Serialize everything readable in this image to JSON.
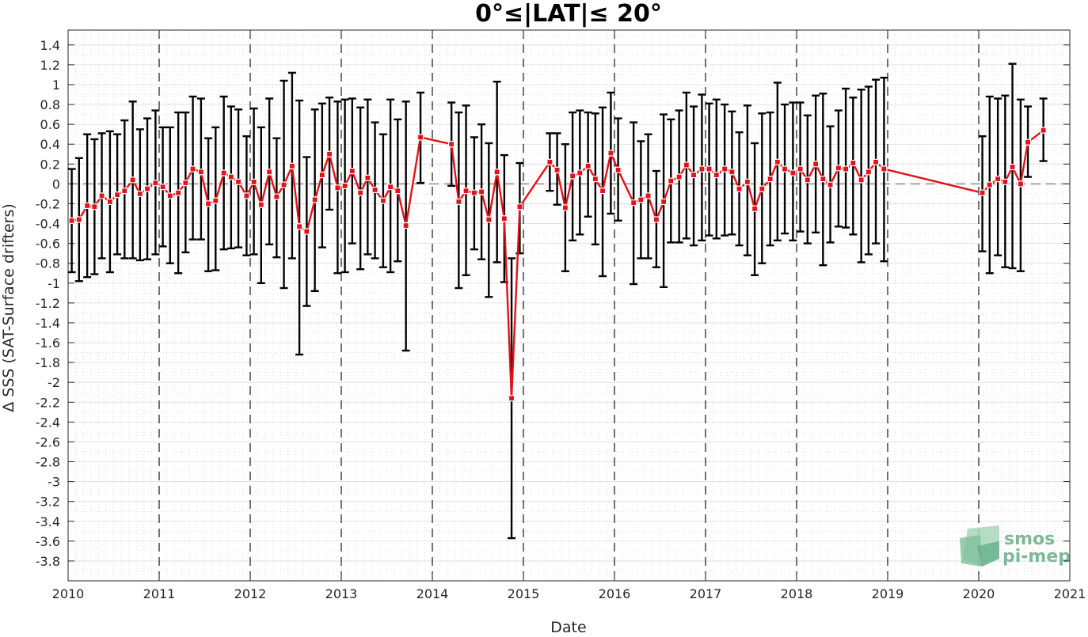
{
  "chart_data": {
    "type": "line",
    "title": "0°≤|LAT|≤ 20°",
    "xlabel": "Date",
    "ylabel": "Δ SSS (SAT-Surface drifters)",
    "xlim": [
      2010,
      2021
    ],
    "ylim": [
      -4.0,
      1.55
    ],
    "x_ticks": [
      "2010",
      "2011",
      "2012",
      "2013",
      "2014",
      "2015",
      "2016",
      "2017",
      "2018",
      "2019",
      "2020",
      "2021"
    ],
    "y_ticks": [
      1.4,
      1.2,
      1,
      0.8,
      0.6,
      0.4,
      0.2,
      0,
      -0.2,
      -0.4,
      -0.6,
      -0.8,
      -1,
      -1.2,
      -1.4,
      -1.6,
      -1.8,
      -2,
      -2.2,
      -2.4,
      -2.6,
      -2.8,
      -3,
      -3.2,
      -3.4,
      -3.6,
      -3.8
    ],
    "y_tick_labels": [
      "1.4",
      "1.2",
      "1",
      "0.8",
      "0.6",
      "0.4",
      "0.2",
      "0",
      "-0.2",
      "-0.4",
      "-0.6",
      "-0.8",
      "-1",
      "-1.2",
      "-1.4",
      "-1.6",
      "-1.8",
      "-2",
      "-2.2",
      "-2.4",
      "-2.6",
      "-2.8",
      "-3",
      "-3.2",
      "-3.4",
      "-3.6",
      "-3.8"
    ],
    "grid": true,
    "zero_line": true,
    "year_separators": true,
    "line_color": "#e3121a",
    "errorbar_color": "#000000",
    "series": [
      {
        "x": [
          2010.04,
          2010.12,
          2010.21,
          2010.29,
          2010.37,
          2010.46,
          2010.54,
          2010.62,
          2010.71,
          2010.79,
          2010.87,
          2010.96,
          2011.04,
          2011.12,
          2011.21,
          2011.29,
          2011.37,
          2011.46,
          2011.54,
          2011.62,
          2011.71,
          2011.79,
          2011.87,
          2011.96,
          2012.04,
          2012.12,
          2012.21,
          2012.29,
          2012.37,
          2012.46,
          2012.54,
          2012.62,
          2012.71,
          2012.79,
          2012.87,
          2012.96,
          2013.04,
          2013.12,
          2013.21,
          2013.29,
          2013.37,
          2013.46,
          2013.54,
          2013.62,
          2013.71,
          2013.87,
          2014.21,
          2014.29,
          2014.37,
          2014.46,
          2014.54,
          2014.62,
          2014.71,
          2014.79,
          2014.87,
          2014.96,
          2015.29,
          2015.37,
          2015.46,
          2015.54,
          2015.62,
          2015.71,
          2015.79,
          2015.87,
          2015.96,
          2016.04,
          2016.21,
          2016.29,
          2016.37,
          2016.46,
          2016.54,
          2016.62,
          2016.71,
          2016.79,
          2016.87,
          2016.96,
          2017.04,
          2017.12,
          2017.21,
          2017.29,
          2017.37,
          2017.46,
          2017.54,
          2017.62,
          2017.71,
          2017.79,
          2017.87,
          2017.96,
          2018.04,
          2018.12,
          2018.21,
          2018.29,
          2018.37,
          2018.46,
          2018.54,
          2018.62,
          2018.71,
          2018.79,
          2018.87,
          2018.96,
          2020.04,
          2020.12,
          2020.21,
          2020.29,
          2020.37,
          2020.46,
          2020.54,
          2020.71
        ],
        "values": [
          -0.37,
          -0.36,
          -0.22,
          -0.23,
          -0.12,
          -0.18,
          -0.11,
          -0.07,
          0.04,
          -0.1,
          -0.05,
          0.01,
          -0.03,
          -0.12,
          -0.09,
          0.01,
          0.15,
          0.12,
          -0.2,
          -0.17,
          0.11,
          0.07,
          0.02,
          -0.12,
          0.02,
          -0.21,
          0.12,
          -0.13,
          -0.01,
          0.18,
          -0.43,
          -0.48,
          -0.16,
          0.09,
          0.3,
          -0.04,
          -0.02,
          0.13,
          -0.09,
          0.06,
          -0.06,
          -0.17,
          -0.03,
          -0.07,
          -0.42,
          0.47,
          0.4,
          -0.18,
          -0.07,
          -0.09,
          -0.08,
          -0.36,
          0.12,
          -0.35,
          -2.16,
          -0.23,
          0.22,
          0.14,
          -0.24,
          0.08,
          0.11,
          0.18,
          0.05,
          -0.07,
          0.31,
          0.14,
          -0.19,
          -0.16,
          -0.12,
          -0.36,
          -0.18,
          0.03,
          0.07,
          0.19,
          0.09,
          0.15,
          0.15,
          0.09,
          0.15,
          0.12,
          -0.05,
          0.02,
          -0.25,
          -0.05,
          0.05,
          0.22,
          0.15,
          0.11,
          0.15,
          0.04,
          0.2,
          0.05,
          -0.01,
          0.16,
          0.15,
          0.21,
          0.04,
          0.12,
          0.22,
          0.15,
          -0.09,
          -0.01,
          0.05,
          0.02,
          0.17,
          0.0,
          0.42,
          0.54
        ],
        "err_high": [
          0.15,
          0.26,
          0.5,
          0.45,
          0.51,
          0.53,
          0.5,
          0.64,
          0.83,
          0.55,
          0.66,
          0.74,
          0.57,
          0.57,
          0.72,
          0.72,
          0.88,
          0.86,
          0.46,
          0.57,
          0.88,
          0.78,
          0.75,
          0.48,
          0.76,
          0.57,
          0.86,
          0.46,
          1.04,
          1.12,
          0.84,
          0.27,
          0.75,
          0.81,
          0.87,
          0.83,
          0.85,
          0.86,
          0.77,
          0.85,
          0.62,
          0.5,
          0.85,
          0.65,
          0.83,
          0.92,
          0.82,
          0.72,
          0.79,
          0.47,
          0.6,
          0.41,
          1.03,
          0.29,
          -0.75,
          0.21,
          0.51,
          0.51,
          0.4,
          0.72,
          0.74,
          0.72,
          0.71,
          0.77,
          0.92,
          0.66,
          0.62,
          0.43,
          0.5,
          0.13,
          0.7,
          0.65,
          0.74,
          0.92,
          0.78,
          0.9,
          0.81,
          0.85,
          0.8,
          0.73,
          0.52,
          0.79,
          0.41,
          0.71,
          0.72,
          1.02,
          0.8,
          0.82,
          0.82,
          0.69,
          0.89,
          0.91,
          0.58,
          0.74,
          0.96,
          0.87,
          0.95,
          0.98,
          1.05,
          1.07,
          0.48,
          0.88,
          0.86,
          0.89,
          1.21,
          0.85,
          0.78,
          0.86
        ],
        "err_low": [
          -0.89,
          -0.98,
          -0.94,
          -0.91,
          -0.75,
          -0.89,
          -0.71,
          -0.75,
          -0.75,
          -0.77,
          -0.76,
          -0.71,
          -0.63,
          -0.8,
          -0.9,
          -0.69,
          -0.56,
          -0.56,
          -0.88,
          -0.87,
          -0.66,
          -0.65,
          -0.64,
          -0.72,
          -0.71,
          -1.0,
          -0.61,
          -0.74,
          -1.05,
          -0.75,
          -1.72,
          -1.23,
          -1.08,
          -0.64,
          -0.26,
          -0.9,
          -0.89,
          -0.6,
          -0.86,
          -0.71,
          -0.75,
          -0.84,
          -0.89,
          -0.78,
          -1.68,
          0.01,
          -0.02,
          -1.05,
          -0.92,
          -0.66,
          -0.76,
          -1.14,
          -0.79,
          -0.99,
          -3.57,
          -0.7,
          -0.07,
          -0.21,
          -0.88,
          -0.57,
          -0.51,
          -0.33,
          -0.61,
          -0.93,
          -0.3,
          -0.37,
          -1.01,
          -0.75,
          -0.75,
          -0.84,
          -1.04,
          -0.59,
          -0.59,
          -0.55,
          -0.62,
          -0.57,
          -0.52,
          -0.55,
          -0.52,
          -0.51,
          -0.62,
          -0.72,
          -0.92,
          -0.8,
          -0.62,
          -0.57,
          -0.5,
          -0.57,
          -0.48,
          -0.6,
          -0.49,
          -0.82,
          -0.59,
          -0.43,
          -0.44,
          -0.51,
          -0.79,
          -0.71,
          -0.6,
          -0.78,
          -0.68,
          -0.9,
          -0.72,
          -0.84,
          -0.85,
          -0.88,
          0.07,
          0.23
        ]
      }
    ]
  },
  "logo": {
    "line1": "smos",
    "line2": "pi-mep"
  }
}
